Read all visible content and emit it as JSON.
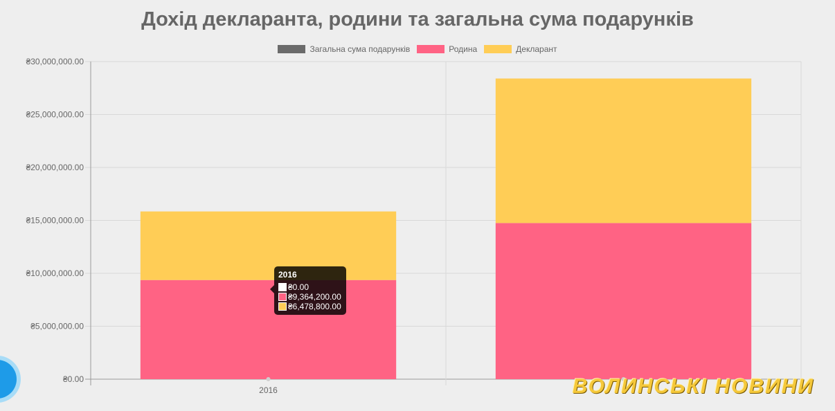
{
  "chart_data": {
    "type": "bar",
    "stacked": true,
    "title": "Дохід декларанта, родини та загальна сума подарунків",
    "categories": [
      "2016",
      ""
    ],
    "series": [
      {
        "name": "Загальна сума подарунків",
        "color": "#6b6b6b",
        "values": [
          0,
          0
        ]
      },
      {
        "name": "Родина",
        "color": "#ff6384",
        "values": [
          9364200,
          14750000
        ]
      },
      {
        "name": "Декларант",
        "color": "#ffcd56",
        "values": [
          6478800,
          13650000
        ]
      }
    ],
    "ylim": [
      0,
      30000000
    ],
    "y_ticks": [
      "₴0.00",
      "₴5,000,000.00",
      "₴10,000,000.00",
      "₴15,000,000.00",
      "₴20,000,000.00",
      "₴25,000,000.00",
      "₴30,000,000.00"
    ],
    "grid": true,
    "legend_position": "top"
  },
  "tooltip": {
    "title": "2016",
    "rows": [
      {
        "label": "₴0.00",
        "color": "#ffffff"
      },
      {
        "label": "₴9,364,200.00",
        "color": "#ff6384"
      },
      {
        "label": "₴6,478,800.00",
        "color": "#ffcd56"
      }
    ]
  },
  "watermark": "ВОЛИНСЬКІ НОВИНИ"
}
